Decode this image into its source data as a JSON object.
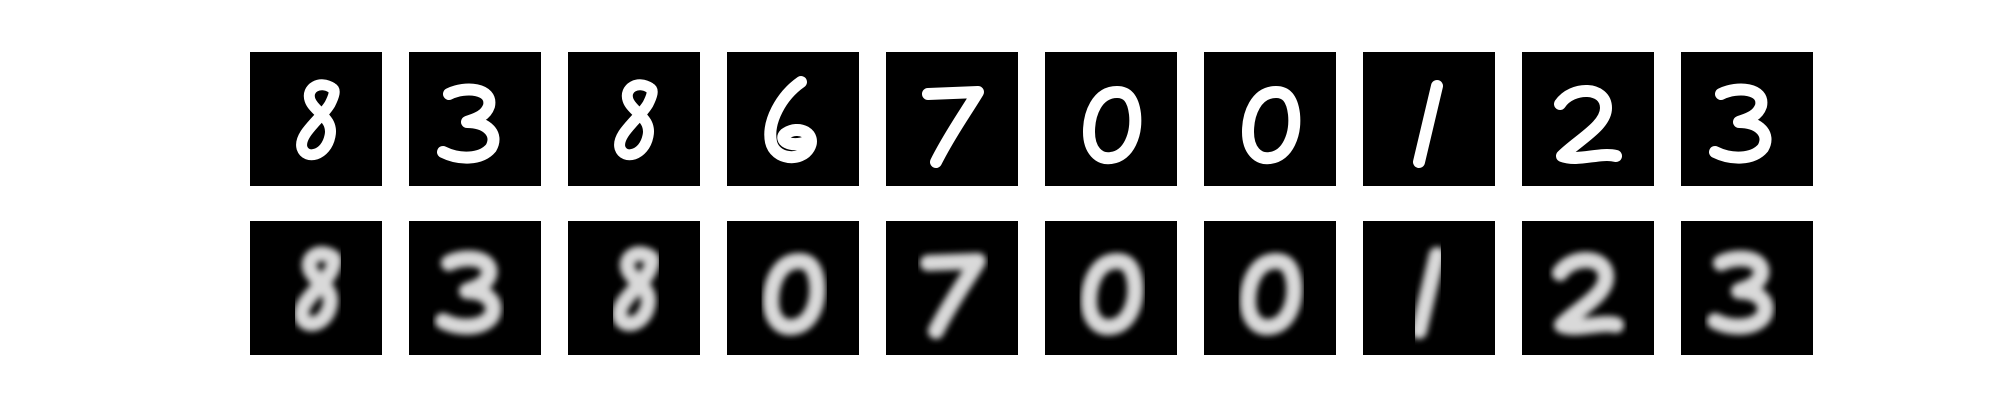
{
  "figure": {
    "background": "#ffffff",
    "tile_background": "#000000",
    "stroke_color": "#ffffff",
    "rows": [
      {
        "role": "original",
        "style": "sharp",
        "digits": [
          "8",
          "3",
          "8",
          "6",
          "7",
          "0",
          "0",
          "1",
          "2",
          "3"
        ]
      },
      {
        "role": "reconstruction",
        "style": "blurred",
        "digits": [
          "8",
          "3",
          "8",
          "0",
          "7",
          "0",
          "0",
          "1",
          "2",
          "3"
        ]
      }
    ]
  }
}
